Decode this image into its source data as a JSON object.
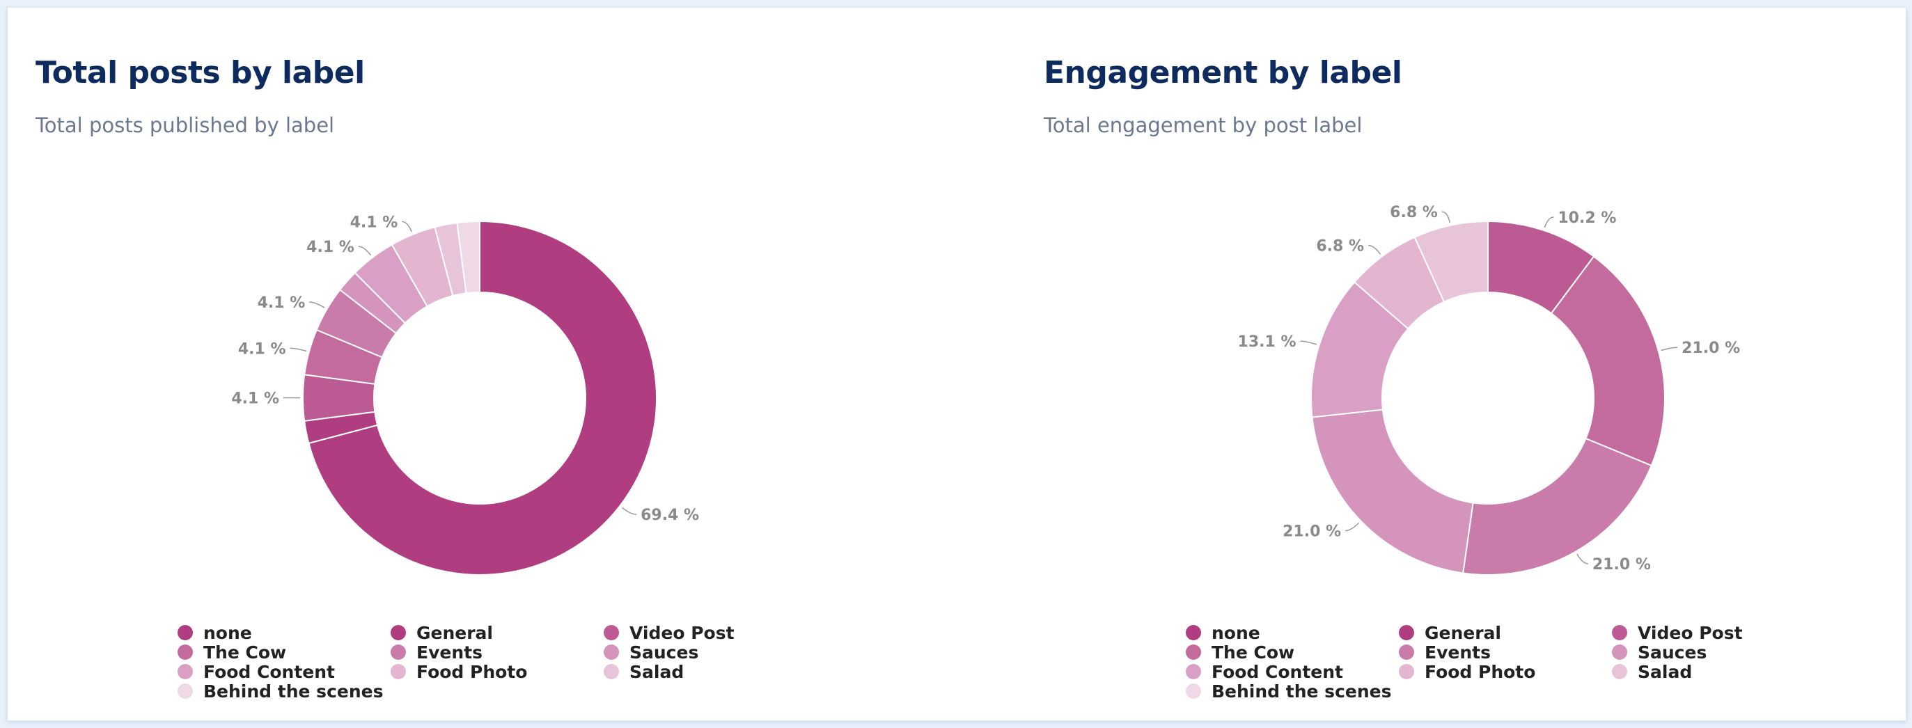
{
  "colors": {
    "none": "#b03d80",
    "General": "#b03d80",
    "Video Post": "#bc5a93",
    "The Cow": "#c46b9e",
    "Events": "#c97ba9",
    "Sauces": "#d494bb",
    "Food Content": "#da9fc4",
    "Food Photo": "#e3b5d1",
    "Salad": "#e8c4da",
    "Behind the scenes": "#f0d9e7"
  },
  "panels": [
    {
      "title": "Total posts by label",
      "subtitle": "Total posts published by label"
    },
    {
      "title": "Engagement by label",
      "subtitle": "Total engagement by post label"
    }
  ],
  "chart_data": [
    {
      "type": "pie",
      "donut": true,
      "title": "Total posts by label",
      "subtitle": "Total posts published by label",
      "legend_position": "bottom",
      "unit": "%",
      "categories": [
        "none",
        "General",
        "Video Post",
        "The Cow",
        "Events",
        "Sauces",
        "Food Content",
        "Food Photo",
        "Salad",
        "Behind the scenes"
      ],
      "legend_order": [
        "none",
        "General",
        "Video Post",
        "The Cow",
        "Events",
        "Sauces",
        "Food Content",
        "Food Photo",
        "Salad",
        "Behind the scenes"
      ],
      "slices": [
        {
          "label": "none",
          "value": 69.4,
          "data_label": "69.4 %"
        },
        {
          "label": "General",
          "value": 2.0,
          "data_label": ""
        },
        {
          "label": "Video Post",
          "value": 4.1,
          "data_label": "4.1 %"
        },
        {
          "label": "The Cow",
          "value": 4.1,
          "data_label": "4.1 %"
        },
        {
          "label": "Events",
          "value": 4.1,
          "data_label": "4.1 %"
        },
        {
          "label": "Sauces",
          "value": 2.0,
          "data_label": ""
        },
        {
          "label": "Food Content",
          "value": 4.1,
          "data_label": "4.1 %"
        },
        {
          "label": "Food Photo",
          "value": 4.1,
          "data_label": "4.1 %"
        },
        {
          "label": "Salad",
          "value": 2.0,
          "data_label": ""
        },
        {
          "label": "Behind the scenes",
          "value": 2.0,
          "data_label": ""
        }
      ]
    },
    {
      "type": "pie",
      "donut": true,
      "title": "Engagement by label",
      "subtitle": "Total engagement by post label",
      "legend_position": "bottom",
      "unit": "%",
      "categories": [
        "none",
        "General",
        "Video Post",
        "The Cow",
        "Events",
        "Sauces",
        "Food Content",
        "Food Photo",
        "Salad",
        "Behind the scenes"
      ],
      "legend_order": [
        "none",
        "General",
        "Video Post",
        "The Cow",
        "Events",
        "Sauces",
        "Food Content",
        "Food Photo",
        "Salad",
        "Behind the scenes"
      ],
      "slices": [
        {
          "label": "Video Post",
          "value": 10.2,
          "data_label": "10.2 %"
        },
        {
          "label": "The Cow",
          "value": 21.0,
          "data_label": "21.0 %"
        },
        {
          "label": "Events",
          "value": 21.0,
          "data_label": "21.0 %"
        },
        {
          "label": "Sauces",
          "value": 21.0,
          "data_label": "21.0 %"
        },
        {
          "label": "Food Content",
          "value": 13.1,
          "data_label": "13.1 %"
        },
        {
          "label": "Food Photo",
          "value": 6.8,
          "data_label": "6.8 %"
        },
        {
          "label": "Salad",
          "value": 6.8,
          "data_label": "6.8 %"
        }
      ]
    }
  ]
}
